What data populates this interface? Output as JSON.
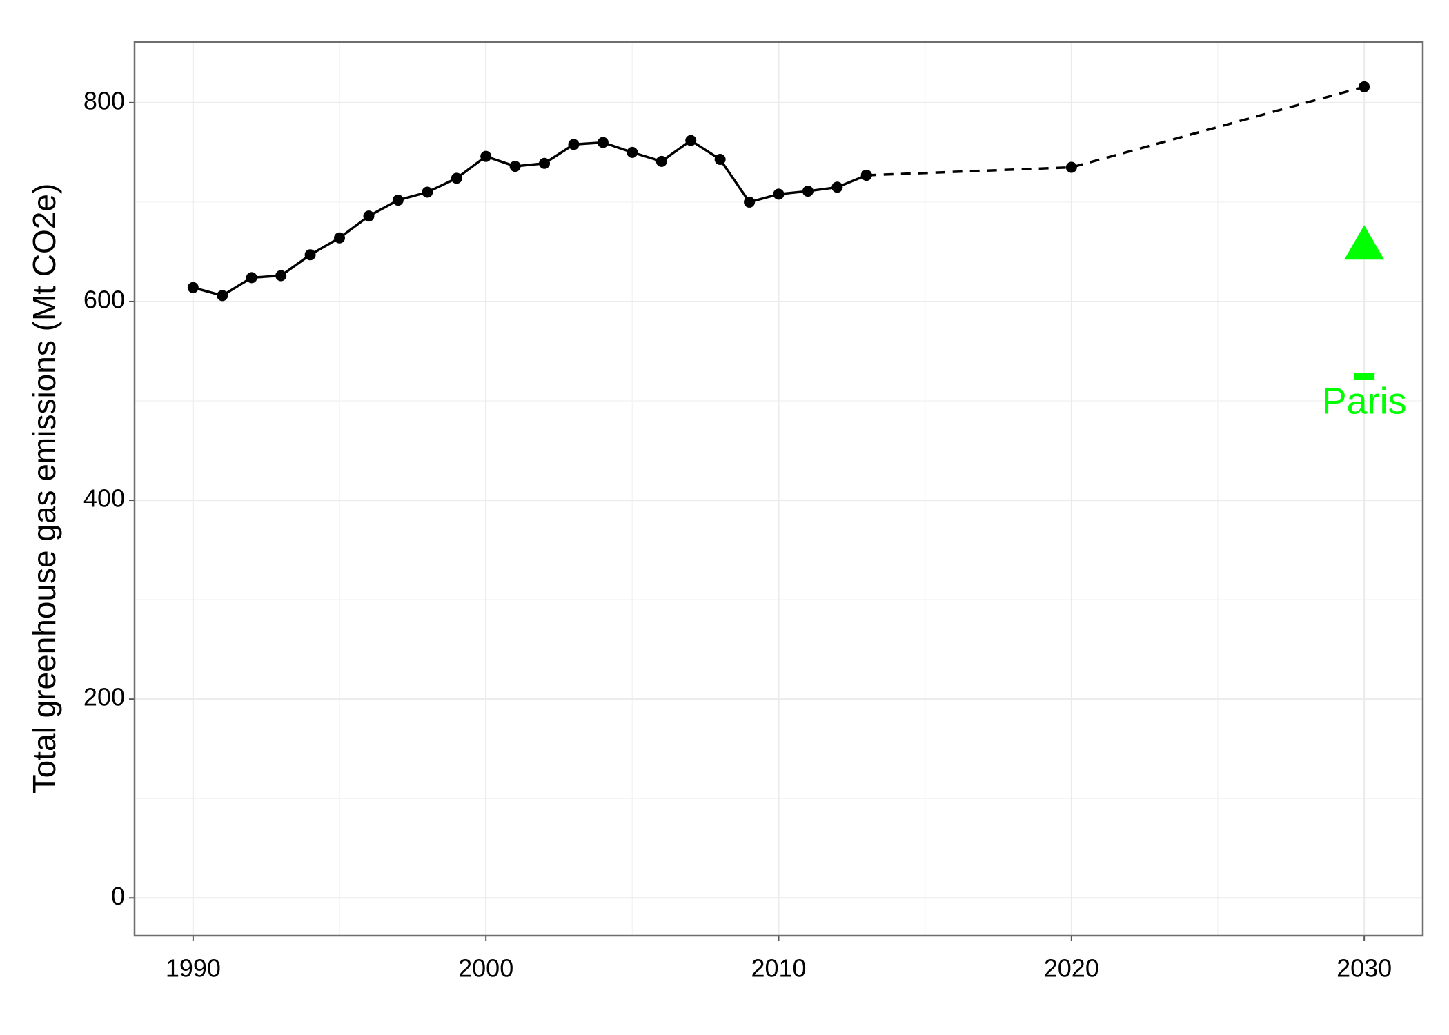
{
  "chart_data": {
    "type": "line",
    "y_label": "Total greenhouse gas emissions (Mt CO2e)",
    "xlim": [
      1988,
      2032
    ],
    "xticks": [
      1990,
      2000,
      2010,
      2020,
      2030
    ],
    "ylim": [
      -38,
      861
    ],
    "yticks": [
      0,
      200,
      400,
      600,
      800
    ],
    "grid": true,
    "minor_grid": true,
    "series": [
      {
        "color": "#000000",
        "style": "solid",
        "marker": "circle",
        "x": [
          1990,
          1991,
          1992,
          1993,
          1994,
          1995,
          1996,
          1997,
          1998,
          1999,
          2000,
          2001,
          2002,
          2003,
          2004,
          2005,
          2006,
          2007,
          2008,
          2009,
          2010,
          2011,
          2012,
          2013
        ],
        "values": [
          614,
          606,
          624,
          626,
          647,
          664,
          686,
          702,
          710,
          724,
          746,
          736,
          739,
          758,
          760,
          750,
          741,
          762,
          743,
          700,
          708,
          711,
          715,
          727
        ]
      },
      {
        "color": "#000000",
        "style": "dashed",
        "marker": "circle",
        "x": [
          2013,
          2020,
          2030
        ],
        "values": [
          727,
          735,
          816
        ]
      },
      {
        "color": "#00ff00",
        "style": "none",
        "marker": "triangle",
        "x": [
          2030
        ],
        "values": [
          656
        ]
      },
      {
        "name": "Paris",
        "color": "#00ff00",
        "style": "none",
        "marker": "dash",
        "x": [
          2030
        ],
        "values": [
          525
        ]
      }
    ]
  }
}
